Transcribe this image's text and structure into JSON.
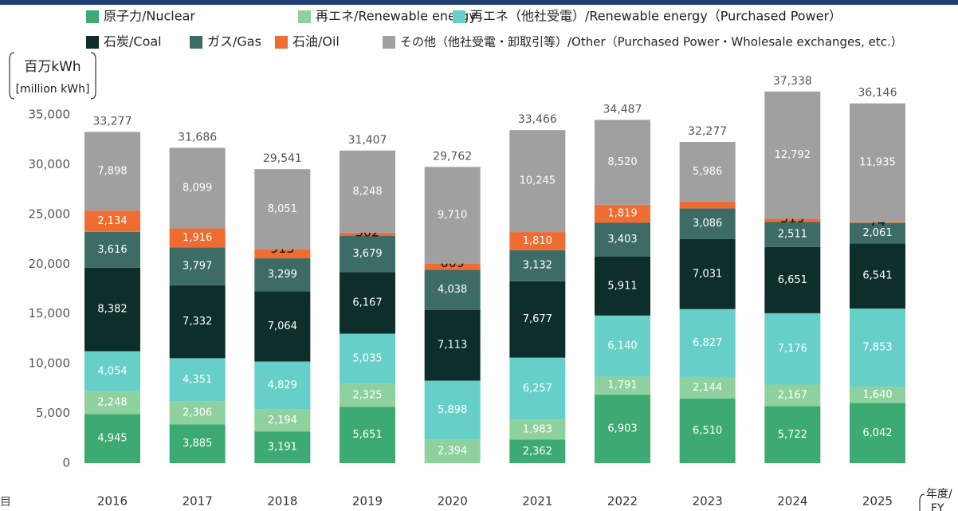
{
  "chart_data": {
    "type": "stacked_bar",
    "y_axis_label": "百万kWh",
    "y_axis_label_en": "[million kWh]",
    "x_axis_label": "年度/",
    "x_axis_label_en": "FY",
    "left_fragment": "目",
    "categories": [
      "2016",
      "2017",
      "2018",
      "2019",
      "2020",
      "2021",
      "2022",
      "2023",
      "2024",
      "2025"
    ],
    "ylim": [
      0,
      38000
    ],
    "yticks": [
      0,
      {
        "value": 5000,
        "label": "5,000"
      },
      {
        "value": 10000,
        "label": "10,000"
      },
      {
        "value": 15000,
        "label": "15,000"
      },
      {
        "value": 20000,
        "label": "20,000"
      },
      {
        "value": 25000,
        "label": "25,000"
      },
      {
        "value": 30000,
        "label": "30,000"
      },
      {
        "value": 35000,
        "label": "35,000"
      }
    ],
    "series": [
      {
        "name": "原子力/Nuclear",
        "color": "#3daa74",
        "values": [
          4945,
          3885,
          3191,
          5651,
          0,
          2362,
          6903,
          6510,
          5722,
          6042
        ],
        "value_labels": [
          "4,945",
          "3,885",
          "3,191",
          "5,651",
          null,
          "2,362",
          "6,903",
          "6,510",
          "5,722",
          "6,042"
        ]
      },
      {
        "name": "再エネ/Renewable energy",
        "color": "#8fd19e",
        "values": [
          2248,
          2306,
          2194,
          2325,
          2394,
          1983,
          1791,
          2144,
          2167,
          1640
        ],
        "value_labels": [
          "2,248",
          "2,306",
          "2,194",
          "2,325",
          "2,394",
          "1,983",
          "1,791",
          "2,144",
          "2,167",
          "1,640"
        ]
      },
      {
        "name": "再エネ（他社受電）/Renewable energy（Purchased Power）",
        "color": "#66d0c8",
        "values": [
          4054,
          4351,
          4829,
          5035,
          5898,
          6257,
          6140,
          6827,
          7176,
          7853
        ],
        "value_labels": [
          "4,054",
          "4,351",
          "4,829",
          "5,035",
          "5,898",
          "6,257",
          "6,140",
          "6,827",
          "7,176",
          "7,853"
        ]
      },
      {
        "name": "石炭/Coal",
        "color": "#0d2e2a",
        "values": [
          8382,
          7332,
          7064,
          6167,
          7113,
          7677,
          5911,
          7031,
          6651,
          6541
        ],
        "value_labels": [
          "8,382",
          "7,332",
          "7,064",
          "6,167",
          "7,113",
          "7,677",
          "5,911",
          "7,031",
          "6,651",
          "6,541"
        ]
      },
      {
        "name": "ガス/Gas",
        "color": "#3d6b66",
        "values": [
          3616,
          3797,
          3299,
          3679,
          4038,
          3132,
          3403,
          3086,
          2511,
          2061
        ],
        "value_labels": [
          "3,616",
          "3,797",
          "3,299",
          "3,679",
          "4,038",
          "3,132",
          "3,403",
          "3,086",
          "2,511",
          "2,061"
        ]
      },
      {
        "name": "石油/Oil",
        "color": "#ef6c32",
        "values": [
          2134,
          1916,
          913,
          302,
          609,
          1810,
          1819,
          693,
          319,
          74
        ],
        "value_labels": [
          "2,134",
          "1,916",
          "913",
          "302",
          "609",
          "1,810",
          "1,819",
          null,
          "319",
          "74"
        ]
      },
      {
        "name": "その他（他社受電・卸取引等）/Other（Purchased Power・Wholesale exchanges, etc.）",
        "color": "#a0a0a0",
        "values": [
          7898,
          8099,
          8051,
          8248,
          9710,
          10245,
          8520,
          5986,
          12792,
          11935
        ],
        "value_labels": [
          "7,898",
          "8,099",
          "8,051",
          "8,248",
          "9,710",
          "10,245",
          "8,520",
          "5,986",
          "12,792",
          "11,935"
        ]
      }
    ],
    "totals": {
      "values": [
        33277,
        31686,
        29541,
        31407,
        29762,
        33466,
        34487,
        32277,
        37338,
        36146
      ],
      "value_labels": [
        "33,277",
        "31,686",
        "29,541",
        "31,407",
        "29,762",
        "33,466",
        "34,487",
        "32,277",
        "37,338",
        "36,146"
      ]
    }
  }
}
